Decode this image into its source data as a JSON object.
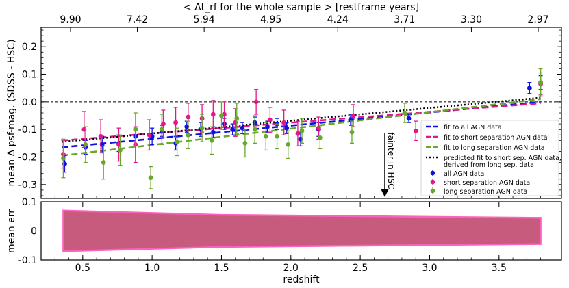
{
  "chart_data": [
    {
      "type": "scatter",
      "title": "",
      "top_axis_label": "< Δt_rf for the whole sample > [restframe years]",
      "top_ticks": [
        {
          "z": 0.5,
          "label": "9.90"
        },
        {
          "z": 1.0,
          "label": "7.42"
        },
        {
          "z": 1.5,
          "label": "5.94"
        },
        {
          "z": 2.0,
          "label": "4.95"
        },
        {
          "z": 2.5,
          "label": "4.24"
        },
        {
          "z": 3.0,
          "label": "3.71"
        },
        {
          "z": 3.5,
          "label": "3.30"
        },
        {
          "z": 4.0,
          "label": "2.97"
        }
      ],
      "top_axis_xlim": [
        0.5,
        4.0
      ],
      "ylabel": "mean Δ psf-mag. (SDSS - HSC)",
      "xlabel": "redshift",
      "xlim": [
        0.2,
        3.95
      ],
      "ylim": [
        -0.35,
        0.27
      ],
      "xticks": [
        "0.5",
        "1.0",
        "1.5",
        "2.0",
        "2.5",
        "3.0",
        "3.5"
      ],
      "yticks": [
        "0.2",
        "0.1",
        "0.0",
        "-0.1",
        "-0.2",
        "-0.3"
      ],
      "annotation": "fainter in HSC",
      "legend_position": "lower-right",
      "series": [
        {
          "name": "all AGN data",
          "color": "#1010e0",
          "marker": "o",
          "points": [
            {
              "x": 0.37,
              "y": -0.225,
              "err": 0.03
            },
            {
              "x": 0.52,
              "y": -0.165,
              "err": 0.025
            },
            {
              "x": 0.64,
              "y": -0.155,
              "err": 0.03
            },
            {
              "x": 0.76,
              "y": -0.15,
              "err": 0.03
            },
            {
              "x": 0.88,
              "y": -0.125,
              "err": 0.03
            },
            {
              "x": 1.0,
              "y": -0.125,
              "err": 0.03
            },
            {
              "x": 1.07,
              "y": -0.105,
              "err": 0.02
            },
            {
              "x": 1.17,
              "y": -0.15,
              "err": 0.025
            },
            {
              "x": 1.25,
              "y": -0.09,
              "err": 0.02
            },
            {
              "x": 1.35,
              "y": -0.1,
              "err": 0.025
            },
            {
              "x": 1.44,
              "y": -0.11,
              "err": 0.02
            },
            {
              "x": 1.52,
              "y": -0.08,
              "err": 0.02
            },
            {
              "x": 1.58,
              "y": -0.1,
              "err": 0.02
            },
            {
              "x": 1.65,
              "y": -0.095,
              "err": 0.02
            },
            {
              "x": 1.74,
              "y": -0.075,
              "err": 0.02
            },
            {
              "x": 1.83,
              "y": -0.09,
              "err": 0.02
            },
            {
              "x": 1.9,
              "y": -0.08,
              "err": 0.02
            },
            {
              "x": 1.97,
              "y": -0.095,
              "err": 0.02
            },
            {
              "x": 2.07,
              "y": -0.135,
              "err": 0.025
            },
            {
              "x": 2.2,
              "y": -0.1,
              "err": 0.025
            },
            {
              "x": 2.43,
              "y": -0.065,
              "err": 0.02
            },
            {
              "x": 2.85,
              "y": -0.06,
              "err": 0.015
            },
            {
              "x": 3.72,
              "y": 0.05,
              "err": 0.02
            },
            {
              "x": 3.8,
              "y": 0.07,
              "err": 0.025
            }
          ]
        },
        {
          "name": "short separation AGN data",
          "color": "#e0188a",
          "marker": "o",
          "points": [
            {
              "x": 0.36,
              "y": -0.19,
              "err": 0.05
            },
            {
              "x": 0.51,
              "y": -0.1,
              "err": 0.065
            },
            {
              "x": 0.63,
              "y": -0.125,
              "err": 0.06
            },
            {
              "x": 0.76,
              "y": -0.155,
              "err": 0.06
            },
            {
              "x": 0.88,
              "y": -0.155,
              "err": 0.065
            },
            {
              "x": 0.98,
              "y": -0.12,
              "err": 0.055
            },
            {
              "x": 1.08,
              "y": -0.08,
              "err": 0.05
            },
            {
              "x": 1.17,
              "y": -0.075,
              "err": 0.055
            },
            {
              "x": 1.26,
              "y": -0.055,
              "err": 0.05
            },
            {
              "x": 1.36,
              "y": -0.06,
              "err": 0.05
            },
            {
              "x": 1.44,
              "y": -0.045,
              "err": 0.05
            },
            {
              "x": 1.52,
              "y": -0.045,
              "err": 0.045
            },
            {
              "x": 1.6,
              "y": -0.075,
              "err": 0.05
            },
            {
              "x": 1.75,
              "y": 0.0,
              "err": 0.045
            },
            {
              "x": 1.85,
              "y": -0.065,
              "err": 0.045
            },
            {
              "x": 1.95,
              "y": -0.075,
              "err": 0.045
            },
            {
              "x": 2.05,
              "y": -0.115,
              "err": 0.045
            },
            {
              "x": 2.2,
              "y": -0.095,
              "err": 0.04
            },
            {
              "x": 2.45,
              "y": -0.05,
              "err": 0.04
            },
            {
              "x": 2.9,
              "y": -0.105,
              "err": 0.035
            },
            {
              "x": 3.8,
              "y": 0.065,
              "err": 0.04
            }
          ]
        },
        {
          "name": "long separation AGN data",
          "color": "#6aa82c",
          "marker": "o",
          "points": [
            {
              "x": 0.36,
              "y": -0.205,
              "err": 0.07
            },
            {
              "x": 0.52,
              "y": -0.155,
              "err": 0.065
            },
            {
              "x": 0.65,
              "y": -0.22,
              "err": 0.06
            },
            {
              "x": 0.77,
              "y": -0.175,
              "err": 0.055
            },
            {
              "x": 0.88,
              "y": -0.1,
              "err": 0.06
            },
            {
              "x": 0.99,
              "y": -0.275,
              "err": 0.04
            },
            {
              "x": 1.07,
              "y": -0.1,
              "err": 0.055
            },
            {
              "x": 1.18,
              "y": -0.145,
              "err": 0.05
            },
            {
              "x": 1.26,
              "y": -0.12,
              "err": 0.05
            },
            {
              "x": 1.36,
              "y": -0.095,
              "err": 0.05
            },
            {
              "x": 1.43,
              "y": -0.14,
              "err": 0.05
            },
            {
              "x": 1.5,
              "y": -0.05,
              "err": 0.05
            },
            {
              "x": 1.61,
              "y": -0.06,
              "err": 0.055
            },
            {
              "x": 1.67,
              "y": -0.15,
              "err": 0.05
            },
            {
              "x": 1.74,
              "y": -0.1,
              "err": 0.05
            },
            {
              "x": 1.82,
              "y": -0.125,
              "err": 0.05
            },
            {
              "x": 1.9,
              "y": -0.125,
              "err": 0.045
            },
            {
              "x": 1.98,
              "y": -0.155,
              "err": 0.05
            },
            {
              "x": 2.08,
              "y": -0.105,
              "err": 0.045
            },
            {
              "x": 2.21,
              "y": -0.13,
              "err": 0.04
            },
            {
              "x": 2.44,
              "y": -0.11,
              "err": 0.04
            },
            {
              "x": 2.82,
              "y": -0.04,
              "err": 0.035
            },
            {
              "x": 3.8,
              "y": 0.07,
              "err": 0.05
            }
          ]
        }
      ],
      "fits": [
        {
          "name": "fit to all AGN data",
          "color": "#1010e0",
          "dash": "dashed",
          "x": [
            0.35,
            3.8
          ],
          "y": [
            -0.165,
            0.0
          ]
        },
        {
          "name": "fit to short separation AGN data",
          "color": "#e0188a",
          "dash": "dashed",
          "x": [
            0.35,
            3.8
          ],
          "y": [
            -0.14,
            -0.005
          ]
        },
        {
          "name": "fit to long separation AGN data",
          "color": "#6aa82c",
          "dash": "dashed",
          "x": [
            0.35,
            3.8
          ],
          "y": [
            -0.195,
            0.01
          ]
        },
        {
          "name": "predicted fit to short sep. AGN data,\n derived from long sep. data",
          "color": "#000000",
          "dash": "dotted",
          "x": [
            0.35,
            3.8
          ],
          "y": [
            -0.145,
            0.015
          ]
        }
      ]
    },
    {
      "type": "area",
      "ylabel": "mean err",
      "xlabel": "redshift",
      "xlim": [
        0.2,
        3.95
      ],
      "ylim": [
        -0.1,
        0.1
      ],
      "yticks": [
        "0.1",
        "0",
        "-0.1"
      ],
      "xticks": [
        "0.5",
        "1.0",
        "1.5",
        "2.0",
        "2.5",
        "3.0",
        "3.5"
      ],
      "band": {
        "x": [
          0.36,
          1.5,
          3.8
        ],
        "upper": [
          0.07,
          0.055,
          0.045
        ],
        "lower": [
          -0.07,
          -0.055,
          -0.045
        ]
      },
      "band_color": "#c75b7e",
      "band_edge_color": "#ff5fbf"
    }
  ]
}
